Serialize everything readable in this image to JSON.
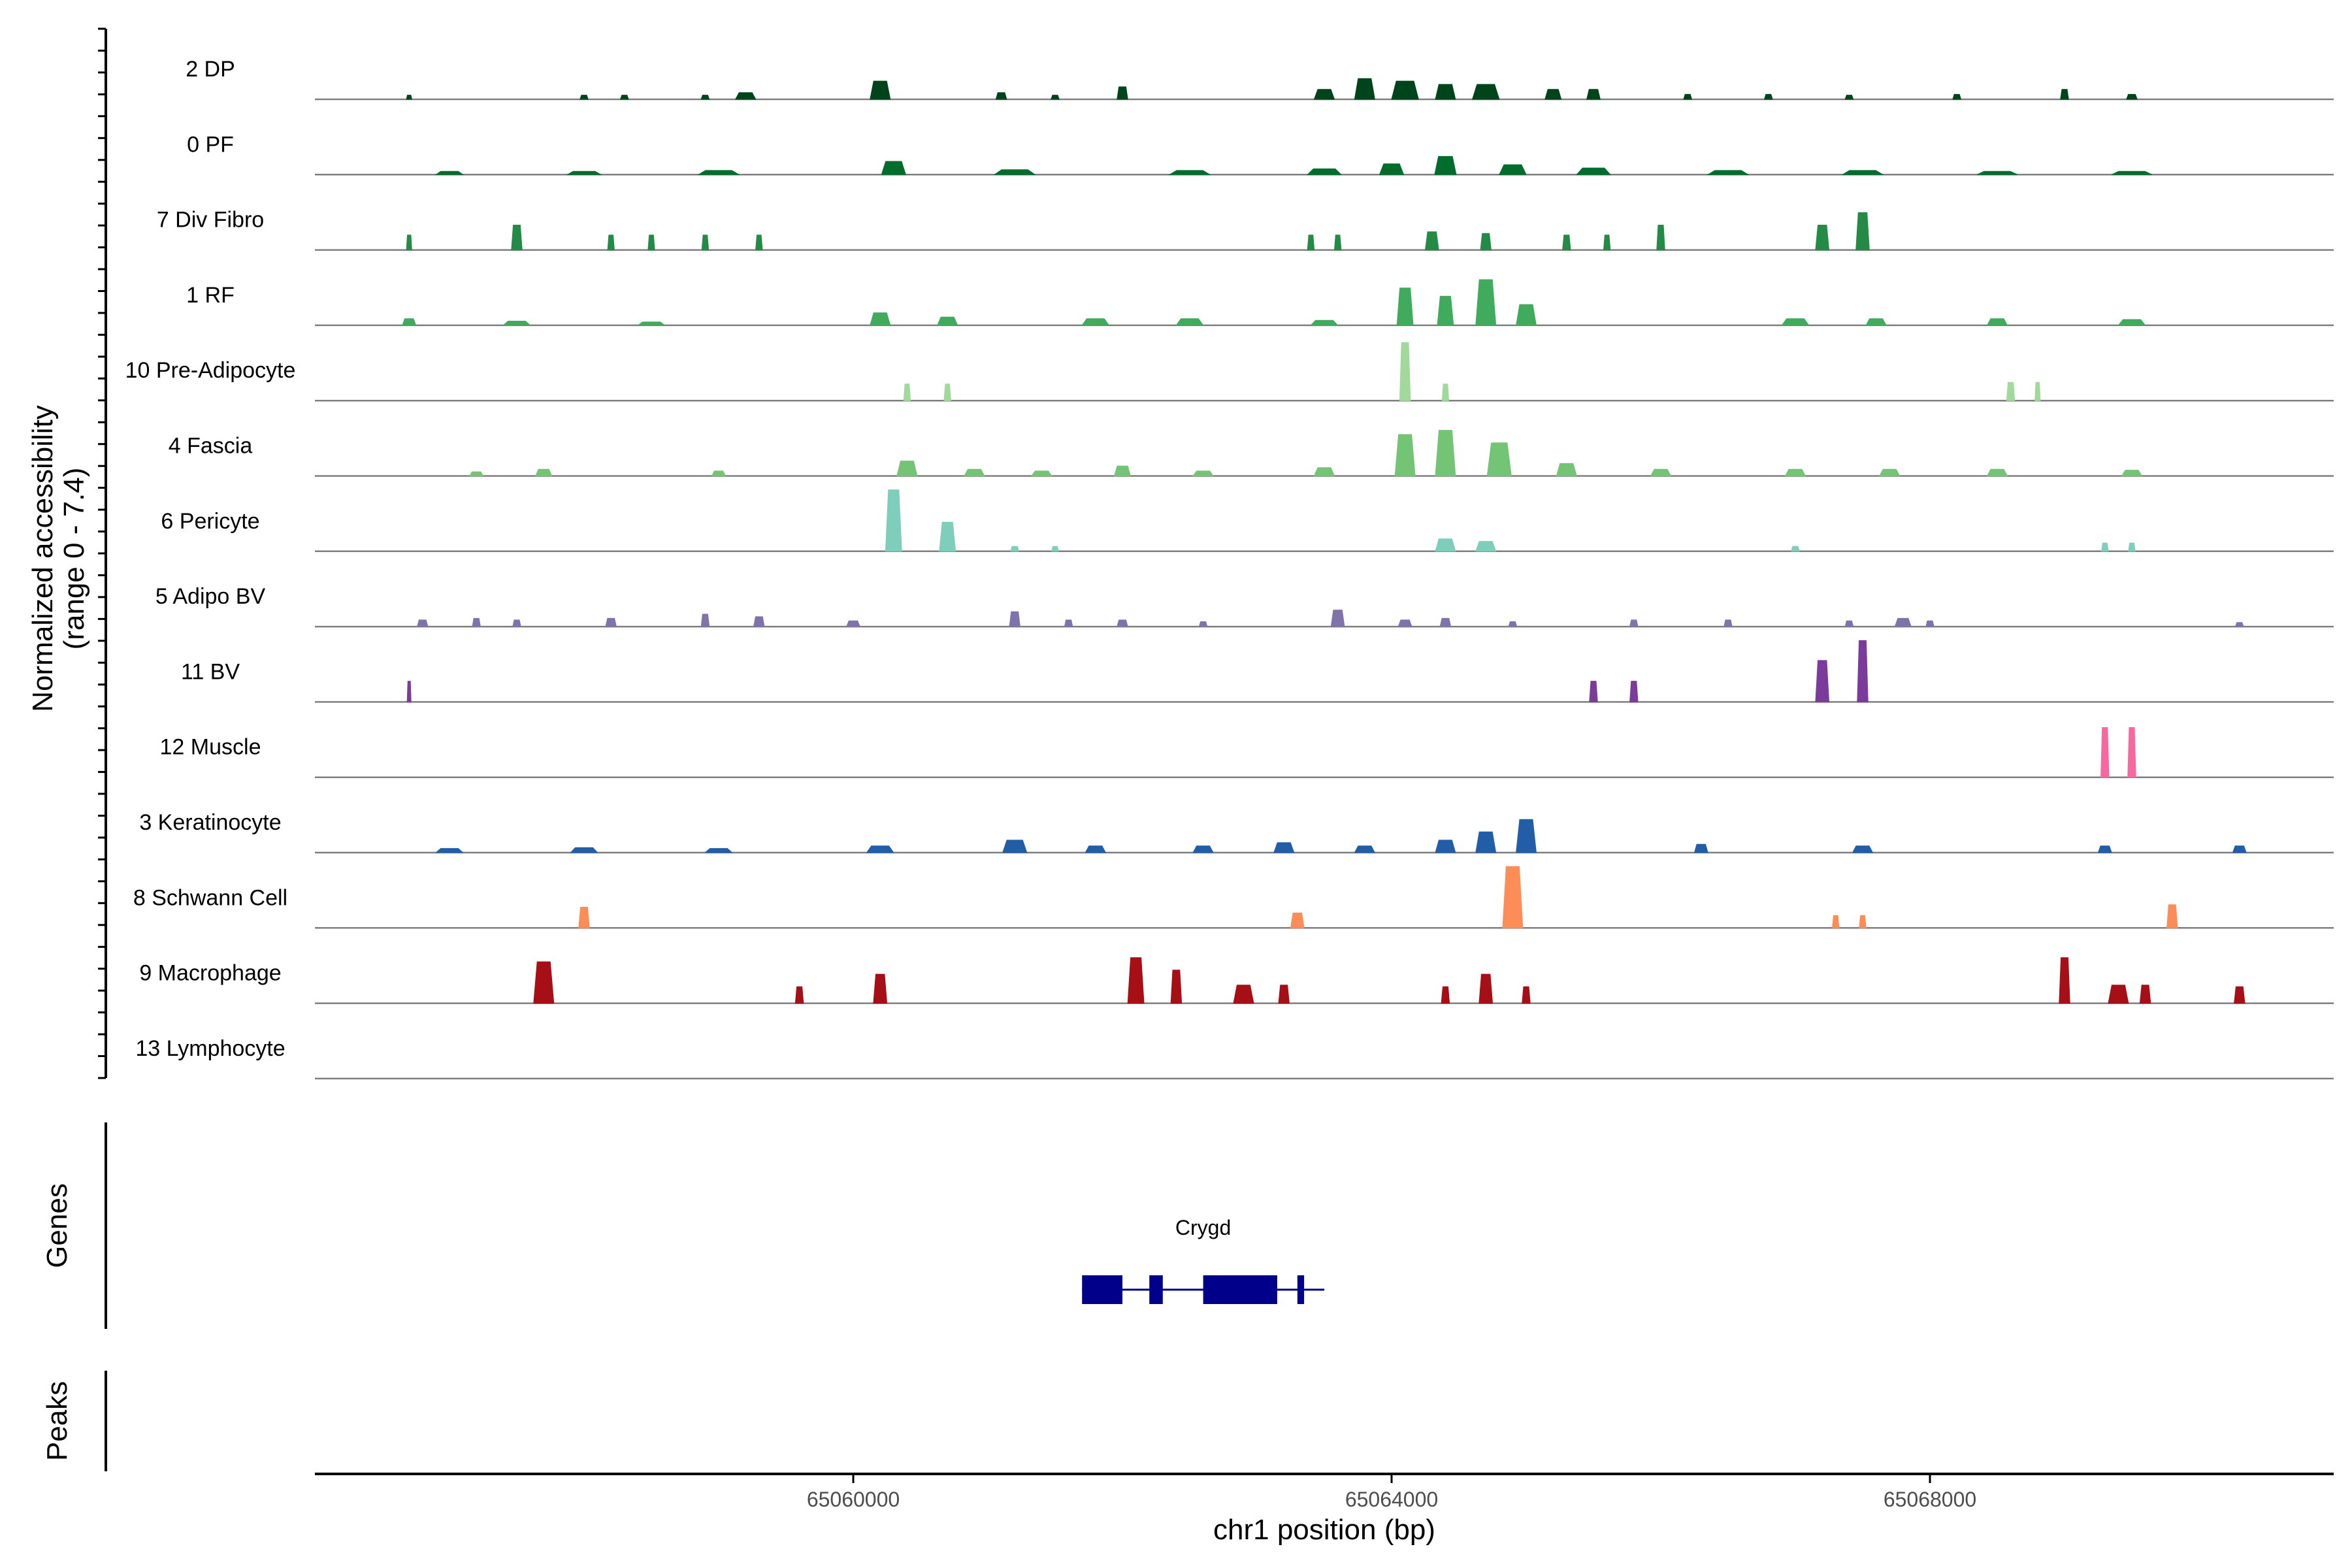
{
  "chart_data": {
    "type": "area",
    "title": "",
    "ylabel_line1": "Normalized accessibility",
    "ylabel_line2": "(range 0 - 7.4)",
    "y_range": [
      0,
      7.4
    ],
    "xlabel": "chr1 position (bp)",
    "x_range": [
      65056000,
      65071000
    ],
    "x_ticks": [
      65060000,
      65064000,
      65068000
    ],
    "x_tick_labels": [
      "65060000",
      "65064000",
      "65068000"
    ],
    "genes_panel_label": "Genes",
    "peaks_panel_label": "Peaks",
    "genes": [
      {
        "name": "Crygd",
        "label_x": 65062600,
        "start": 65061700,
        "end": 65063500,
        "exons": [
          [
            65061700,
            65062000
          ],
          [
            65062200,
            65062300
          ],
          [
            65062600,
            65063150
          ],
          [
            65063300,
            65063350
          ]
        ],
        "color": "#00008B"
      }
    ],
    "tracks": [
      {
        "name": "2 DP",
        "color": "#00441b",
        "peaks": [
          [
            65056700,
            0.5,
            40
          ],
          [
            65058000,
            0.5,
            60
          ],
          [
            65058300,
            0.5,
            60
          ],
          [
            65058900,
            0.5,
            60
          ],
          [
            65059200,
            0.8,
            150
          ],
          [
            65060200,
            2.2,
            150
          ],
          [
            65061100,
            0.8,
            80
          ],
          [
            65061500,
            0.5,
            60
          ],
          [
            65062000,
            1.5,
            80
          ],
          [
            65063500,
            1.2,
            150
          ],
          [
            65063800,
            2.5,
            150
          ],
          [
            65064100,
            2.2,
            200
          ],
          [
            65064400,
            1.8,
            150
          ],
          [
            65064700,
            1.8,
            200
          ],
          [
            65065200,
            1.2,
            120
          ],
          [
            65065500,
            1.2,
            100
          ],
          [
            65066200,
            0.6,
            60
          ],
          [
            65066800,
            0.6,
            60
          ],
          [
            65067400,
            0.5,
            60
          ],
          [
            65068200,
            0.6,
            60
          ],
          [
            65069000,
            1.2,
            60
          ],
          [
            65069500,
            0.6,
            80
          ]
        ]
      },
      {
        "name": "0 PF",
        "color": "#006d2c",
        "peaks": [
          [
            65057000,
            0.4,
            200
          ],
          [
            65058000,
            0.4,
            250
          ],
          [
            65059000,
            0.5,
            300
          ],
          [
            65060300,
            1.6,
            180
          ],
          [
            65061200,
            0.6,
            300
          ],
          [
            65062500,
            0.5,
            300
          ],
          [
            65063500,
            0.7,
            250
          ],
          [
            65064000,
            1.3,
            180
          ],
          [
            65064400,
            2.2,
            160
          ],
          [
            65064900,
            1.2,
            200
          ],
          [
            65065500,
            0.8,
            250
          ],
          [
            65066500,
            0.5,
            300
          ],
          [
            65067500,
            0.5,
            300
          ],
          [
            65068500,
            0.4,
            300
          ],
          [
            65069500,
            0.4,
            300
          ]
        ]
      },
      {
        "name": "7 Div Fibro",
        "color": "#238b45",
        "peaks": [
          [
            65056700,
            1.8,
            40
          ],
          [
            65057500,
            3.0,
            80
          ],
          [
            65058200,
            1.8,
            50
          ],
          [
            65058500,
            1.8,
            50
          ],
          [
            65058900,
            1.8,
            50
          ],
          [
            65059300,
            1.8,
            50
          ],
          [
            65063400,
            1.8,
            50
          ],
          [
            65063600,
            1.8,
            50
          ],
          [
            65064300,
            2.2,
            100
          ],
          [
            65064700,
            2.0,
            80
          ],
          [
            65065300,
            1.8,
            60
          ],
          [
            65065600,
            1.8,
            50
          ],
          [
            65066000,
            3.0,
            60
          ],
          [
            65067200,
            3.0,
            100
          ],
          [
            65067500,
            4.5,
            100
          ]
        ]
      },
      {
        "name": "1 RF",
        "color": "#41ab5d",
        "peaks": [
          [
            65056700,
            0.8,
            100
          ],
          [
            65057500,
            0.5,
            200
          ],
          [
            65058500,
            0.4,
            200
          ],
          [
            65060200,
            1.5,
            150
          ],
          [
            65060700,
            1.0,
            150
          ],
          [
            65061800,
            0.8,
            200
          ],
          [
            65062500,
            0.8,
            200
          ],
          [
            65063500,
            0.6,
            200
          ],
          [
            65064100,
            4.5,
            120
          ],
          [
            65064400,
            3.5,
            120
          ],
          [
            65064700,
            5.5,
            150
          ],
          [
            65065000,
            2.5,
            150
          ],
          [
            65067000,
            0.8,
            200
          ],
          [
            65067600,
            0.8,
            150
          ],
          [
            65068500,
            0.8,
            150
          ],
          [
            65069500,
            0.7,
            200
          ]
        ]
      },
      {
        "name": "10 Pre-Adipocyte",
        "color": "#a1d99b",
        "peaks": [
          [
            65060400,
            2.0,
            50
          ],
          [
            65060700,
            2.0,
            50
          ],
          [
            65064100,
            7.0,
            80
          ],
          [
            65064400,
            2.0,
            50
          ],
          [
            65068600,
            2.2,
            60
          ],
          [
            65068800,
            2.2,
            40
          ]
        ]
      },
      {
        "name": "4 Fascia",
        "color": "#74c476",
        "peaks": [
          [
            65057200,
            0.5,
            100
          ],
          [
            65057700,
            0.8,
            120
          ],
          [
            65059000,
            0.6,
            100
          ],
          [
            65060400,
            1.8,
            150
          ],
          [
            65060900,
            0.8,
            150
          ],
          [
            65061400,
            0.6,
            150
          ],
          [
            65062000,
            1.2,
            120
          ],
          [
            65062600,
            0.6,
            150
          ],
          [
            65063500,
            1.0,
            150
          ],
          [
            65064100,
            5.0,
            150
          ],
          [
            65064400,
            5.5,
            150
          ],
          [
            65064800,
            4.0,
            180
          ],
          [
            65065300,
            1.5,
            150
          ],
          [
            65066000,
            0.8,
            150
          ],
          [
            65067000,
            0.8,
            150
          ],
          [
            65067700,
            0.8,
            150
          ],
          [
            65068500,
            0.8,
            150
          ],
          [
            65069500,
            0.7,
            150
          ]
        ]
      },
      {
        "name": "6 Pericyte",
        "color": "#7fcdbb",
        "peaks": [
          [
            65060300,
            7.4,
            120
          ],
          [
            65060700,
            3.5,
            120
          ],
          [
            65061200,
            0.6,
            60
          ],
          [
            65061500,
            0.6,
            50
          ],
          [
            65064400,
            1.5,
            150
          ],
          [
            65064700,
            1.2,
            150
          ],
          [
            65067000,
            0.6,
            60
          ],
          [
            65069300,
            1.0,
            50
          ],
          [
            65069500,
            1.0,
            50
          ]
        ]
      },
      {
        "name": "5 Adipo BV",
        "color": "#8073ac",
        "peaks": [
          [
            65056800,
            0.8,
            80
          ],
          [
            65057200,
            1.0,
            60
          ],
          [
            65057500,
            0.8,
            60
          ],
          [
            65058200,
            1.0,
            80
          ],
          [
            65058900,
            1.5,
            60
          ],
          [
            65059300,
            1.2,
            80
          ],
          [
            65060000,
            0.7,
            100
          ],
          [
            65061200,
            1.8,
            80
          ],
          [
            65061600,
            0.8,
            60
          ],
          [
            65062000,
            0.8,
            80
          ],
          [
            65062600,
            0.6,
            60
          ],
          [
            65063600,
            2.0,
            100
          ],
          [
            65064100,
            0.8,
            100
          ],
          [
            65064400,
            1.0,
            80
          ],
          [
            65064900,
            0.6,
            60
          ],
          [
            65065800,
            0.8,
            60
          ],
          [
            65066500,
            0.8,
            60
          ],
          [
            65067400,
            0.7,
            60
          ],
          [
            65067800,
            1.0,
            120
          ],
          [
            65068000,
            0.7,
            60
          ],
          [
            65070300,
            0.5,
            60
          ]
        ]
      },
      {
        "name": "11 BV",
        "color": "#7a3b9a",
        "peaks": [
          [
            65056700,
            2.5,
            20
          ],
          [
            65065500,
            2.5,
            60
          ],
          [
            65065800,
            2.5,
            60
          ],
          [
            65067200,
            5.0,
            100
          ],
          [
            65067500,
            7.4,
            80
          ]
        ]
      },
      {
        "name": "12 Muscle",
        "color": "#f768a1",
        "peaks": [
          [
            65069300,
            6.0,
            60
          ],
          [
            65069500,
            6.0,
            60
          ]
        ]
      },
      {
        "name": "3 Keratinocyte",
        "color": "#225ea8",
        "peaks": [
          [
            65057000,
            0.5,
            200
          ],
          [
            65058000,
            0.6,
            200
          ],
          [
            65059000,
            0.5,
            200
          ],
          [
            65060200,
            0.8,
            200
          ],
          [
            65061200,
            1.5,
            180
          ],
          [
            65061800,
            0.8,
            150
          ],
          [
            65062600,
            0.8,
            150
          ],
          [
            65063200,
            1.2,
            150
          ],
          [
            65063800,
            0.8,
            150
          ],
          [
            65064400,
            1.5,
            150
          ],
          [
            65064700,
            2.5,
            150
          ],
          [
            65065000,
            4.0,
            150
          ],
          [
            65066300,
            1.0,
            100
          ],
          [
            65067500,
            0.8,
            150
          ],
          [
            65069300,
            0.8,
            100
          ],
          [
            65070300,
            0.8,
            100
          ]
        ]
      },
      {
        "name": "8 Schwann Cell",
        "color": "#fc8d59",
        "peaks": [
          [
            65058000,
            2.5,
            80
          ],
          [
            65063300,
            1.8,
            100
          ],
          [
            65064900,
            7.4,
            150
          ],
          [
            65067300,
            1.5,
            50
          ],
          [
            65067500,
            1.5,
            50
          ],
          [
            65069800,
            2.8,
            80
          ]
        ]
      },
      {
        "name": "9 Macrophage",
        "color": "#a50f15",
        "peaks": [
          [
            65057700,
            5.0,
            150
          ],
          [
            65059600,
            2.0,
            60
          ],
          [
            65060200,
            3.5,
            100
          ],
          [
            65062100,
            5.5,
            120
          ],
          [
            65062400,
            4.0,
            80
          ],
          [
            65062900,
            2.2,
            150
          ],
          [
            65063200,
            2.2,
            80
          ],
          [
            65064400,
            2.0,
            60
          ],
          [
            65064700,
            3.5,
            100
          ],
          [
            65065000,
            2.0,
            60
          ],
          [
            65069000,
            5.5,
            80
          ],
          [
            65069400,
            2.2,
            150
          ],
          [
            65069600,
            2.2,
            80
          ],
          [
            65070300,
            2.0,
            80
          ]
        ]
      },
      {
        "name": "13 Lymphocyte",
        "color": "#6a51a3",
        "peaks": []
      }
    ]
  }
}
